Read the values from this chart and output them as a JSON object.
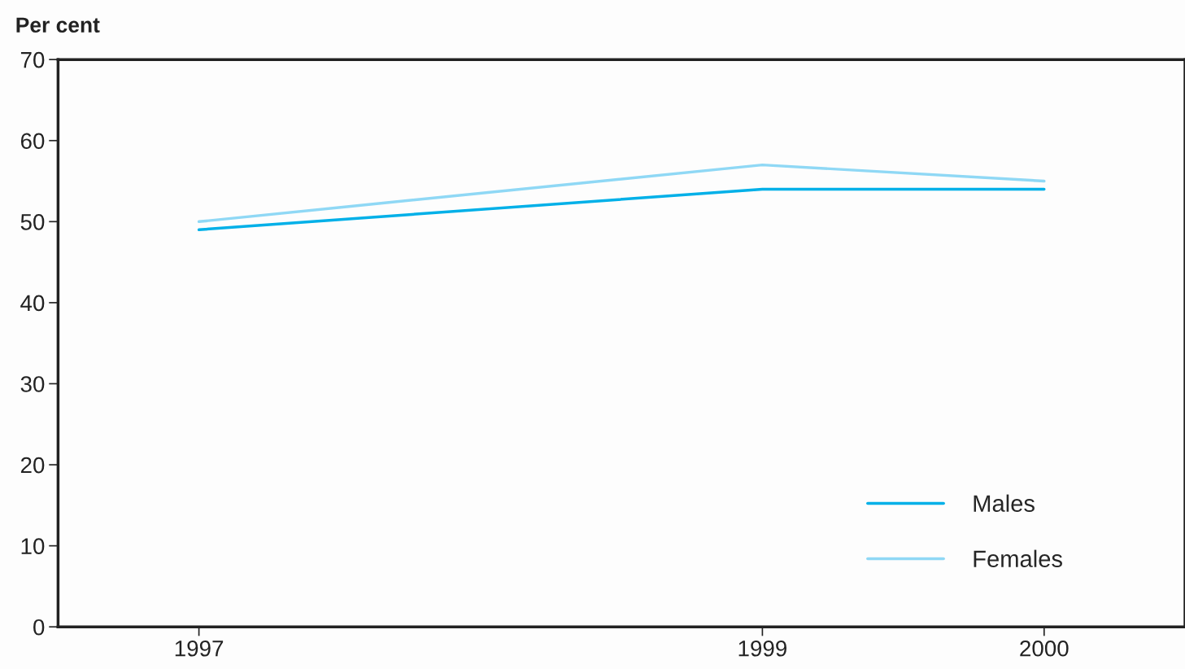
{
  "chart_data": {
    "type": "line",
    "ylabel": "Per cent",
    "x": [
      1997,
      1999,
      2000
    ],
    "series": [
      {
        "name": "Males",
        "color": "#00b0e8",
        "values": [
          49,
          54,
          54
        ]
      },
      {
        "name": "Females",
        "color": "#8fd8f5",
        "values": [
          50,
          57,
          55
        ]
      }
    ],
    "xlim": [
      1996.5,
      2000.5
    ],
    "xticks": [
      1997,
      1999,
      2000
    ],
    "ylim": [
      0,
      70
    ],
    "yticks": [
      0,
      10,
      20,
      30,
      40,
      50,
      60,
      70
    ],
    "grid": false,
    "legend": "bottom right",
    "marker": "none",
    "line_style": "solid"
  }
}
